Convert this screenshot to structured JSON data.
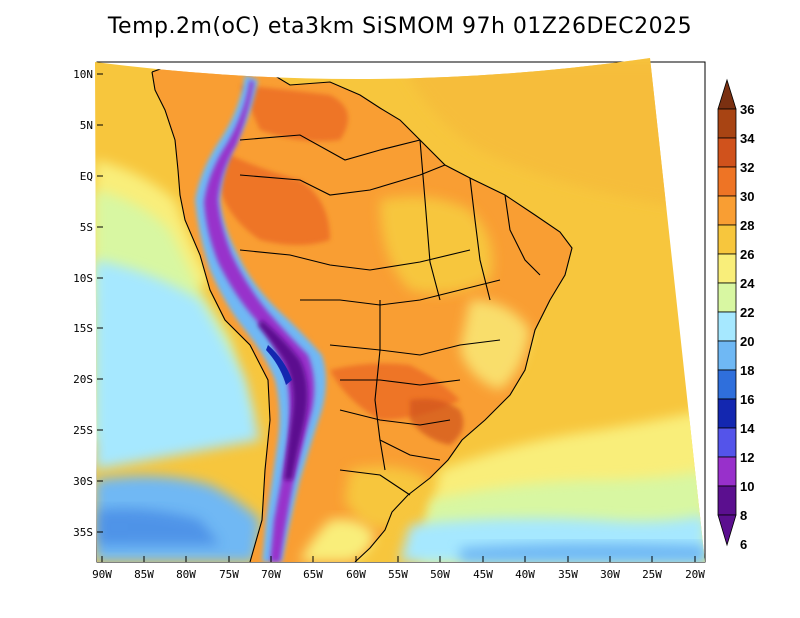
{
  "title": "Temp.2m(oC) eta3km SiSMOM 97h 01Z26DEC2025",
  "map": {
    "lat_ticks": [
      "10N",
      "5N",
      "EQ",
      "5S",
      "10S",
      "15S",
      "20S",
      "25S",
      "30S",
      "35S"
    ],
    "lon_ticks": [
      "90W",
      "85W",
      "80W",
      "75W",
      "70W",
      "65W",
      "60W",
      "55W",
      "50W",
      "45W",
      "40W",
      "35W",
      "30W",
      "25W",
      "20W"
    ]
  },
  "colorbar": {
    "labels": [
      "36",
      "34",
      "32",
      "30",
      "28",
      "26",
      "24",
      "22",
      "20",
      "18",
      "16",
      "14",
      "12",
      "10",
      "8",
      "6"
    ],
    "colors": [
      "#7a3011",
      "#a84413",
      "#d0521c",
      "#ee7425",
      "#f99e33",
      "#f7c63d",
      "#f9ee7a",
      "#d8f7a2",
      "#a6e8ff",
      "#6fb8f4",
      "#2f6fdc",
      "#1327b0",
      "#5454ea",
      "#9830cb",
      "#5b0f8f"
    ]
  }
}
